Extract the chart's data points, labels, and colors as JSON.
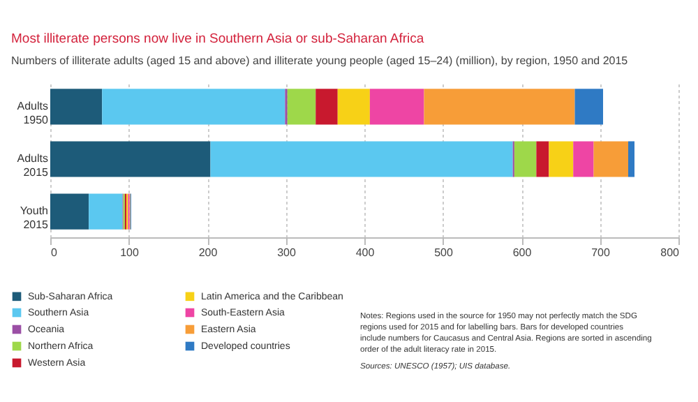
{
  "chart_data": {
    "type": "bar",
    "orientation": "horizontal",
    "stacked": true,
    "title": "Most illiterate persons now live in Southern Asia or sub-Saharan Africa",
    "subtitle": "Numbers of illiterate adults (aged 15 and above) and illiterate young people (aged 15–24) (million), by region, 1950 and 2015",
    "categories": [
      "Adults 1950",
      "Adults 2015",
      "Youth 2015"
    ],
    "series": [
      {
        "name": "Sub-Saharan Africa",
        "color": "#1d5b79",
        "values": [
          66,
          204,
          49
        ]
      },
      {
        "name": "Southern Asia",
        "color": "#5bc8f0",
        "values": [
          233,
          385,
          43
        ]
      },
      {
        "name": "Oceania",
        "color": "#9b4fa5",
        "values": [
          3,
          2,
          1
        ]
      },
      {
        "name": "Northern Africa",
        "color": "#9ed84a",
        "values": [
          36,
          28,
          2
        ]
      },
      {
        "name": "Western Asia",
        "color": "#c8192e",
        "values": [
          28,
          16,
          2
        ]
      },
      {
        "name": "Latin America and the Caribbean",
        "color": "#f7d117",
        "values": [
          41,
          31,
          2
        ]
      },
      {
        "name": "South-Eastern Asia",
        "color": "#ee45a4",
        "values": [
          69,
          26,
          2
        ]
      },
      {
        "name": "Eastern Asia",
        "color": "#f79d38",
        "values": [
          192,
          44,
          1
        ]
      },
      {
        "name": "Developed countries",
        "color": "#2f7ac4",
        "values": [
          36,
          8,
          1
        ]
      }
    ],
    "xlim": [
      0,
      800
    ],
    "xticks": [
      0,
      100,
      200,
      300,
      400,
      500,
      600,
      700,
      800
    ],
    "grid": "x",
    "legend": "bottom left",
    "annotations": [
      "Notes: Regions used in the source for 1950 may not perfectly match the SDG regions used for 2015 and for labelling bars. Bars for developed countries include numbers for Caucasus and Central Asia. Regions are sorted in ascending order of the adult literacy rate in 2015.",
      "Sources: UNESCO (1957); UIS database."
    ]
  }
}
